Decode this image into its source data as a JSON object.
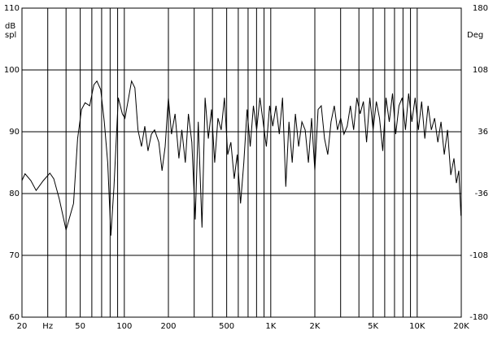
{
  "chart_data": {
    "type": "line",
    "xscale": "log",
    "xlim": [
      20,
      20000
    ],
    "xticks": [
      {
        "value": 20,
        "label": "20"
      },
      {
        "value": 30,
        "label": "Hz"
      },
      50,
      100,
      200,
      500,
      {
        "value": 1000,
        "label": "1K"
      },
      {
        "value": 2000,
        "label": "2K"
      },
      {
        "value": 5000,
        "label": "5K"
      },
      {
        "value": 10000,
        "label": "10K"
      },
      {
        "value": 20000,
        "label": "20K"
      }
    ],
    "xgrid": [
      20,
      30,
      40,
      50,
      60,
      70,
      80,
      90,
      100,
      200,
      300,
      400,
      500,
      600,
      700,
      800,
      900,
      1000,
      2000,
      3000,
      4000,
      5000,
      6000,
      7000,
      8000,
      9000,
      10000,
      20000
    ],
    "ylim": [
      60,
      110
    ],
    "yticks": [
      60,
      70,
      80,
      90,
      100,
      110
    ],
    "y2lim": [
      -180,
      180
    ],
    "y2ticks": [
      -180,
      -108,
      -36,
      36,
      108,
      180
    ],
    "ylabel": [
      "dB",
      "spl"
    ],
    "y2label": "Deg",
    "grid": true,
    "series": [
      {
        "color": "#000000",
        "x": [
          20,
          21,
          23,
          25,
          28,
          31,
          33,
          36,
          40,
          45,
          48,
          51,
          54,
          58,
          62,
          65,
          69,
          73,
          77,
          81,
          85,
          91,
          97,
          101,
          107,
          112,
          118,
          124,
          131,
          138,
          145,
          153,
          161,
          172,
          181,
          190,
          200,
          210,
          222,
          236,
          247,
          261,
          274,
          289,
          305,
          320,
          339,
          356,
          375,
          394,
          414,
          436,
          459,
          483,
          508,
          534,
          563,
          590,
          622,
          655,
          689,
          724,
          761,
          801,
          843,
          887,
          933,
          982,
          1032,
          1087,
          1143,
          1203,
          1266,
          1331,
          1401,
          1474,
          1551,
          1632,
          1717,
          1807,
          1901,
          2000,
          2104,
          2214,
          2330,
          2451,
          2579,
          2714,
          2855,
          3004,
          3161,
          3326,
          3500,
          3683,
          3875,
          4077,
          4290,
          4514,
          4750,
          4998,
          5259,
          5533,
          5822,
          6126,
          6446,
          6782,
          7136,
          7509,
          7901,
          8313,
          8747,
          9204,
          9684,
          10190,
          10722,
          11282,
          11871,
          12490,
          13142,
          13829,
          14550,
          15310,
          16110,
          16950,
          17835,
          18533,
          19258,
          19900
        ],
        "values": [
          82.1,
          83.2,
          82.1,
          80.5,
          82.1,
          83.3,
          82.4,
          79.1,
          74.1,
          78.4,
          88.9,
          93.6,
          94.7,
          94.2,
          97.6,
          98.2,
          96.8,
          91.6,
          85.0,
          73.2,
          81.1,
          95.5,
          92.9,
          92.2,
          95.5,
          98.2,
          97.1,
          90.3,
          87.6,
          90.9,
          86.9,
          89.6,
          90.3,
          88.3,
          83.7,
          87.6,
          95.5,
          89.6,
          92.9,
          85.7,
          90.3,
          85.0,
          92.9,
          88.3,
          75.8,
          91.6,
          74.5,
          95.5,
          88.9,
          93.6,
          85.0,
          92.2,
          90.3,
          95.5,
          86.3,
          88.3,
          82.4,
          86.3,
          78.4,
          85.0,
          93.6,
          87.6,
          94.2,
          90.3,
          95.5,
          91.6,
          87.6,
          94.2,
          90.9,
          94.2,
          89.6,
          95.5,
          81.1,
          91.6,
          85.0,
          92.9,
          87.6,
          91.6,
          90.3,
          85.0,
          92.2,
          83.7,
          93.6,
          94.2,
          88.9,
          86.3,
          91.6,
          94.2,
          90.3,
          92.2,
          89.6,
          90.9,
          94.2,
          90.3,
          95.5,
          92.9,
          94.9,
          88.3,
          95.5,
          90.3,
          94.9,
          92.2,
          86.9,
          95.5,
          91.6,
          96.2,
          89.6,
          94.2,
          95.5,
          90.3,
          96.2,
          91.6,
          95.5,
          90.3,
          94.9,
          88.9,
          94.2,
          90.3,
          92.2,
          88.3,
          91.6,
          86.3,
          90.3,
          83.0,
          85.7,
          81.7,
          83.7,
          76.4
        ]
      }
    ]
  }
}
